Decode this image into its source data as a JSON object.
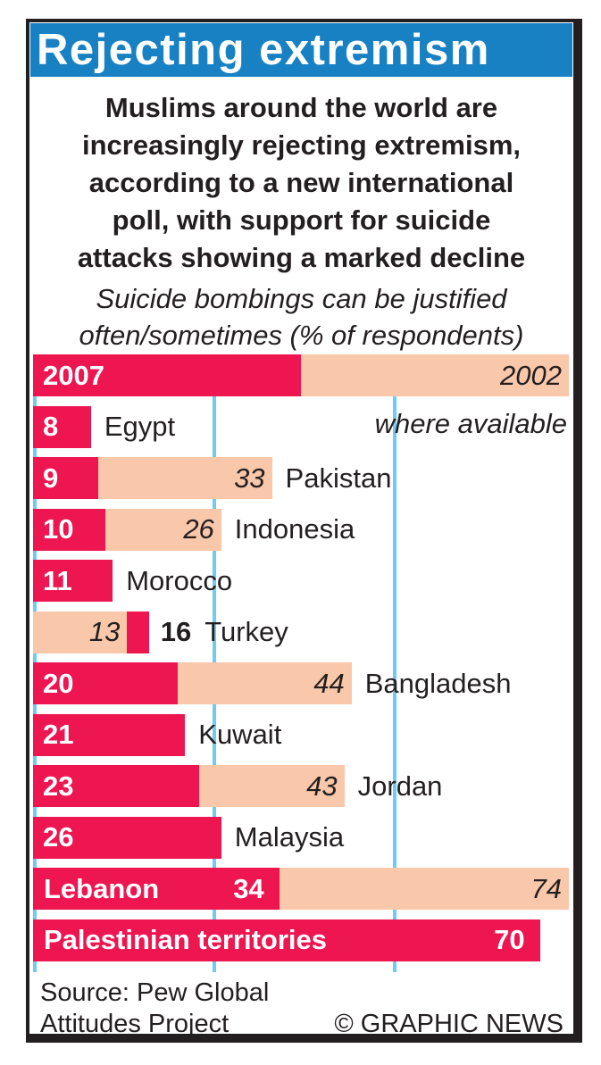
{
  "header": {
    "title": "Rejecting extremism"
  },
  "intro": {
    "lines": [
      "Muslims around the world are",
      "increasingly rejecting extremism,",
      "according to a new international",
      "poll, with support for suicide",
      "attacks showing a marked decline"
    ]
  },
  "subtitle": {
    "lines": [
      "Suicide bombings can be justified",
      "often/sometimes (% of respondents)"
    ]
  },
  "legend": {
    "label_2007": "2007",
    "label_2002": "2002",
    "note": "where available"
  },
  "chart_data": {
    "type": "bar",
    "orientation": "horizontal",
    "title": "Rejecting extremism",
    "subtitle": "Suicide bombings can be justified often/sometimes (% of respondents)",
    "categories": [
      "Egypt",
      "Pakistan",
      "Indonesia",
      "Morocco",
      "Turkey",
      "Bangladesh",
      "Kuwait",
      "Jordan",
      "Malaysia",
      "Lebanon",
      "Palestinian territories"
    ],
    "series": [
      {
        "name": "2007",
        "values": [
          8,
          9,
          10,
          11,
          16,
          20,
          21,
          23,
          26,
          34,
          70
        ]
      },
      {
        "name": "2002",
        "values": [
          null,
          33,
          26,
          null,
          13,
          44,
          null,
          43,
          null,
          74,
          null
        ]
      }
    ],
    "xlim": [
      0,
      74
    ],
    "gridlines_x": [
      0,
      25,
      50
    ],
    "grid": true,
    "legend_position": "top",
    "note": "2002 where available",
    "display": {
      "name_inside": [
        "Lebanon",
        "Palestinian territories"
      ],
      "value_2007_outside": [
        "Turkey"
      ]
    }
  },
  "footer": {
    "source_lines": [
      "Source: Pew Global",
      "Attitudes Project"
    ],
    "copyright": "© GRAPHIC NEWS"
  },
  "colors": {
    "crimson": "#ED1651",
    "peach": "#F9C7A9",
    "header_blue": "#1781C4",
    "gridline_cyan": "#6FCBF1",
    "frame_black": "#231F20"
  }
}
